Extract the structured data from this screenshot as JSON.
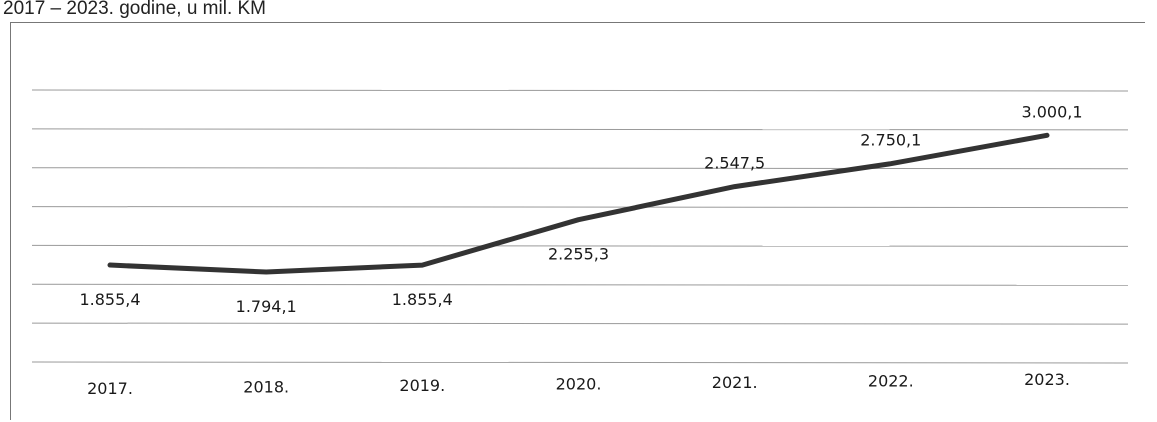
{
  "subtitle": "2017 – 2023. godine, u mil. KM",
  "chart_data": {
    "type": "line",
    "categories": [
      "2017.",
      "2018.",
      "2019.",
      "2020.",
      "2021.",
      "2022.",
      "2023."
    ],
    "series": [
      {
        "values": [
          1855.4,
          1794.1,
          1855.4,
          2255.3,
          2547.5,
          2750.1,
          3000.1
        ]
      }
    ],
    "data_labels": [
      "1.855,4",
      "1.794,1",
      "1.855,4",
      "2.255,3",
      "2.547,5",
      "2.750,1",
      "3.000,1"
    ],
    "title": "2017 – 2023. godine, u mil. KM",
    "xlabel": "",
    "ylabel": "",
    "grid": true,
    "legend": "none",
    "line_color": "#333333"
  }
}
